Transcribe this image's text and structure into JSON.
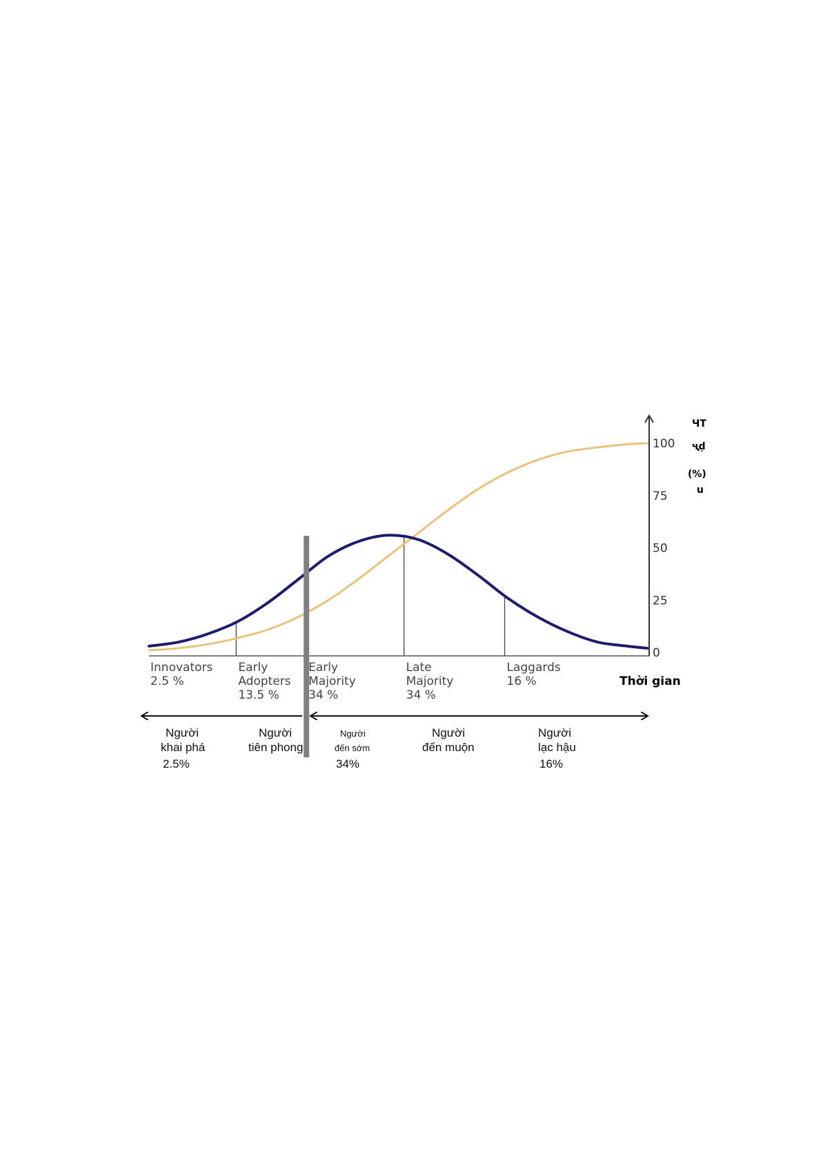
{
  "chart_data": {
    "type": "line",
    "title": "",
    "xlabel": "Thời gian",
    "ylabel_fragments": [
      "ЧТ",
      "ҷd̩",
      "(%)",
      "u"
    ],
    "yticks": [
      "0",
      "25",
      "50",
      "75",
      "100"
    ],
    "ylim": [
      0,
      100
    ],
    "grid": false,
    "series": [
      {
        "kind": "s-curve",
        "color": "#E9C27D",
        "x": [
          0,
          6,
          12,
          18,
          24,
          30,
          36,
          42,
          48,
          54,
          60,
          66,
          72,
          78,
          84,
          90,
          96,
          100
        ],
        "values": [
          1,
          2,
          4,
          7,
          11,
          17,
          25,
          35,
          46,
          57,
          68,
          78,
          86,
          92,
          96,
          98,
          99.5,
          100
        ]
      },
      {
        "kind": "bell-curve",
        "color": "#1E1B6E",
        "x": [
          0,
          6,
          12,
          18,
          24,
          30,
          36,
          42,
          48,
          54,
          60,
          66,
          72,
          78,
          84,
          90,
          96,
          100
        ],
        "values": [
          3,
          5,
          9,
          15,
          24,
          35,
          46,
          53,
          56,
          54,
          47,
          37,
          26,
          17,
          10,
          5,
          3,
          2
        ]
      }
    ],
    "dividers_x": [
      17.5,
      31.6,
      51.2,
      71.4
    ],
    "highlight_divider_x": 31.6,
    "segments": [
      {
        "name": "Innovators",
        "pct": "2.5 %"
      },
      {
        "name": "Early\nAdopters",
        "pct": "13.5 %"
      },
      {
        "name": "Early\nMajority",
        "pct": "34 %"
      },
      {
        "name": "Late\nMajority",
        "pct": "34 %"
      },
      {
        "name": "Laggards",
        "pct": "16 %"
      }
    ],
    "vn_labels": [
      {
        "line1": "Người",
        "line2": "khai phá",
        "pct": "2.5%"
      },
      {
        "line1": "Người",
        "line2": "tiên phong",
        "pct": ""
      },
      {
        "line1": "Người",
        "line2": "đến sớm",
        "pct": "34%"
      },
      {
        "line1": "Người",
        "line2": "đến muộn",
        "pct": ""
      },
      {
        "line1": "Người",
        "line2": "lạc hậu",
        "pct": "16%"
      }
    ]
  }
}
